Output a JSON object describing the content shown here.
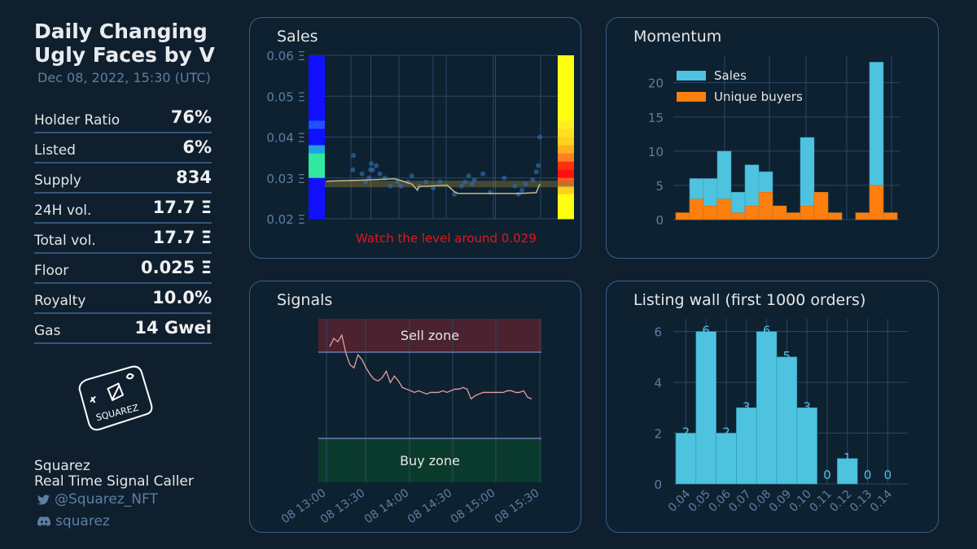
{
  "header": {
    "title_line1": "Daily Changing",
    "title_line2": "Ugly Faces by V",
    "timestamp": "Dec 08, 2022, 15:30 (UTC)"
  },
  "stats": [
    {
      "label": "Holder Ratio",
      "value": "76%"
    },
    {
      "label": "Listed",
      "value": "6%"
    },
    {
      "label": "Supply",
      "value": "834"
    },
    {
      "label": "24H vol.",
      "value": "17.7 Ξ"
    },
    {
      "label": "Total vol.",
      "value": "17.7 Ξ"
    },
    {
      "label": "Floor",
      "value": "0.025 Ξ"
    },
    {
      "label": "Royalty",
      "value": "10.0%"
    },
    {
      "label": "Gas",
      "value": "14 Gwei"
    }
  ],
  "logo": {
    "text": "SQUAREZ"
  },
  "brand": {
    "name": "Squarez",
    "tagline": "Real Time Signal Caller",
    "twitter": "@Squarez_NFT",
    "discord": "squarez",
    "twitter_icon": "twitter-icon",
    "discord_icon": "discord-icon"
  },
  "colors": {
    "accent": "#4ec3e0",
    "orange": "#ff7f0e",
    "alert": "#e0191c",
    "line": "#e8a0a0"
  },
  "panels": {
    "sales": {
      "title": "Sales",
      "note": "Watch the level around 0.029",
      "chart_data": {
        "type": "scatter",
        "ylim": [
          0.02,
          0.06
        ],
        "yticks": [
          "0.02 Ξ",
          "0.03 Ξ",
          "0.04 Ξ",
          "0.05 Ξ",
          "0.06 Ξ"
        ],
        "points": [
          [
            0.37,
            0.032
          ],
          [
            0.38,
            0.0355
          ],
          [
            0.5,
            0.031
          ],
          [
            0.55,
            0.029
          ],
          [
            0.6,
            0.03
          ],
          [
            0.62,
            0.032
          ],
          [
            0.63,
            0.0335
          ],
          [
            0.65,
            0.032
          ],
          [
            0.7,
            0.033
          ],
          [
            0.75,
            0.031
          ],
          [
            0.82,
            0.03
          ],
          [
            0.9,
            0.028
          ],
          [
            1.0,
            0.029
          ],
          [
            1.05,
            0.028
          ],
          [
            1.15,
            0.029
          ],
          [
            1.2,
            0.0305
          ],
          [
            1.3,
            0.028
          ],
          [
            1.4,
            0.029
          ],
          [
            1.5,
            0.0275
          ],
          [
            1.6,
            0.029
          ],
          [
            1.8,
            0.026
          ],
          [
            1.9,
            0.028
          ],
          [
            1.95,
            0.029
          ],
          [
            2.0,
            0.0305
          ],
          [
            2.05,
            0.0285
          ],
          [
            2.08,
            0.0295
          ],
          [
            2.2,
            0.031
          ],
          [
            2.3,
            0.0265
          ],
          [
            2.5,
            0.03
          ],
          [
            2.65,
            0.028
          ],
          [
            2.7,
            0.026
          ],
          [
            2.75,
            0.027
          ],
          [
            2.8,
            0.0285
          ],
          [
            2.9,
            0.0295
          ],
          [
            2.95,
            0.0315
          ],
          [
            2.98,
            0.033
          ],
          [
            3.0,
            0.04
          ]
        ]
      }
    },
    "momentum": {
      "title": "Momentum",
      "chart_data": {
        "type": "bar",
        "ylim": [
          0,
          24
        ],
        "yticks": [
          "0",
          "5",
          "10",
          "15",
          "20"
        ],
        "series": [
          {
            "name": "Sales",
            "values": [
              1,
              6,
              6,
              10,
              4,
              8,
              7,
              2,
              1,
              12,
              4,
              1,
              0,
              1,
              23,
              1
            ]
          },
          {
            "name": "Unique buyers",
            "values": [
              1,
              3,
              2,
              3,
              1,
              2,
              4,
              2,
              1,
              2,
              4,
              1,
              0,
              1,
              5,
              1
            ]
          }
        ]
      }
    },
    "signals": {
      "title": "Signals",
      "sell_zone": "Sell zone",
      "buy_zone": "Buy zone",
      "chart_data": {
        "type": "line",
        "x_ticks": [
          "08 13:00",
          "08 13:30",
          "08 14:00",
          "08 14:30",
          "08 15:00",
          "08 15:30"
        ],
        "y": [
          0.83,
          0.88,
          0.86,
          0.9,
          0.79,
          0.72,
          0.7,
          0.78,
          0.75,
          0.7,
          0.66,
          0.63,
          0.62,
          0.64,
          0.68,
          0.61,
          0.65,
          0.62,
          0.58,
          0.57,
          0.56,
          0.55,
          0.56,
          0.55,
          0.54,
          0.55,
          0.55,
          0.55,
          0.56,
          0.55,
          0.56,
          0.57,
          0.57,
          0.58,
          0.57,
          0.51,
          0.53,
          0.54,
          0.55,
          0.55,
          0.55,
          0.55,
          0.55,
          0.55,
          0.56,
          0.56,
          0.55,
          0.55,
          0.56,
          0.52,
          0.51
        ]
      }
    },
    "listing": {
      "title": "Listing wall (first 1000 orders)",
      "chart_data": {
        "type": "bar",
        "ylim": [
          0,
          6.5
        ],
        "yticks": [
          "0",
          "2",
          "4",
          "6"
        ],
        "categories": [
          "0.04",
          "0.05",
          "0.06",
          "0.07",
          "0.08",
          "0.09",
          "0.10",
          "0.11",
          "0.12",
          "0.13",
          "0.14"
        ],
        "values": [
          2,
          6,
          2,
          3,
          6,
          5,
          3,
          0,
          1,
          0,
          0
        ]
      }
    }
  }
}
